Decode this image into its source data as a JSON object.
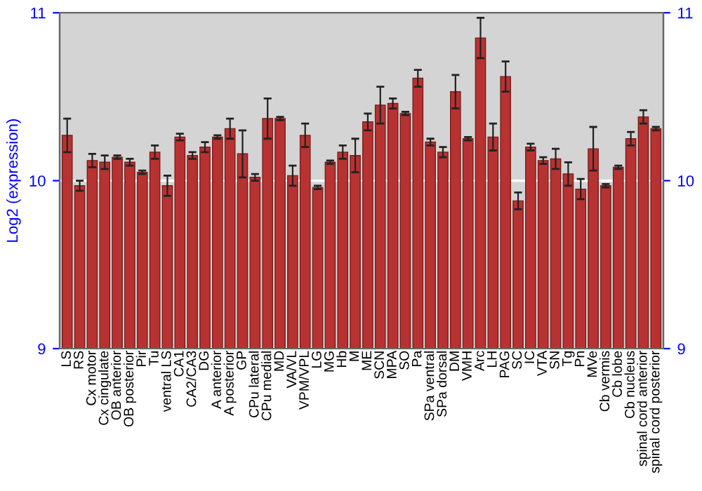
{
  "chart_data": {
    "type": "bar",
    "ylabel": "Log2 (expression)",
    "categories": [
      "LS",
      "RS",
      "Cx motor",
      "Cx cingulate",
      "OB anterior",
      "OB posterior",
      "Pir",
      "Tu",
      "ventral LS",
      "CA1",
      "CA2/CA3",
      "DG",
      "A anterior",
      "A posterior",
      "GP",
      "CPu lateral",
      "CPu medial",
      "MD",
      "VA/VL",
      "VPM/VPL",
      "LG",
      "MG",
      "Hb",
      "M",
      "ME",
      "SCN",
      "MPA",
      "SO",
      "Pa",
      "SPa ventral",
      "SPa dorsal",
      "DM",
      "VMH",
      "Arc",
      "LH",
      "PAG",
      "SC",
      "IC",
      "VTA",
      "SN",
      "Tg",
      "Pn",
      "MVe",
      "Cb vermis",
      "Cb lobe",
      "Cb nucleus",
      "spinal cord anterior",
      "spinal cord posterior"
    ],
    "values": [
      10.27,
      9.97,
      10.12,
      10.11,
      10.14,
      10.11,
      10.05,
      10.17,
      9.97,
      10.26,
      10.15,
      10.2,
      10.26,
      10.31,
      10.16,
      10.02,
      10.37,
      10.37,
      10.03,
      10.27,
      9.96,
      10.11,
      10.17,
      10.15,
      10.35,
      10.45,
      10.46,
      10.4,
      10.61,
      10.23,
      10.17,
      10.53,
      10.25,
      10.85,
      10.26,
      10.62,
      9.88,
      10.2,
      10.12,
      10.13,
      10.04,
      9.95,
      10.19,
      9.97,
      10.08,
      10.25,
      10.38,
      10.31
    ],
    "errors": [
      0.1,
      0.03,
      0.04,
      0.04,
      0.01,
      0.02,
      0.01,
      0.04,
      0.06,
      0.02,
      0.02,
      0.03,
      0.01,
      0.06,
      0.14,
      0.02,
      0.12,
      0.01,
      0.06,
      0.07,
      0.01,
      0.01,
      0.04,
      0.1,
      0.05,
      0.11,
      0.03,
      0.01,
      0.05,
      0.02,
      0.03,
      0.1,
      0.01,
      0.12,
      0.08,
      0.09,
      0.05,
      0.02,
      0.02,
      0.06,
      0.07,
      0.06,
      0.13,
      0.01,
      0.01,
      0.04,
      0.04,
      0.01
    ],
    "color": "#b83232",
    "ylim": [
      9,
      11
    ],
    "yticks": [
      9,
      10,
      11
    ],
    "y2lim": [
      9,
      11
    ],
    "y2ticks": [
      9,
      10,
      11
    ],
    "grid": "y"
  }
}
